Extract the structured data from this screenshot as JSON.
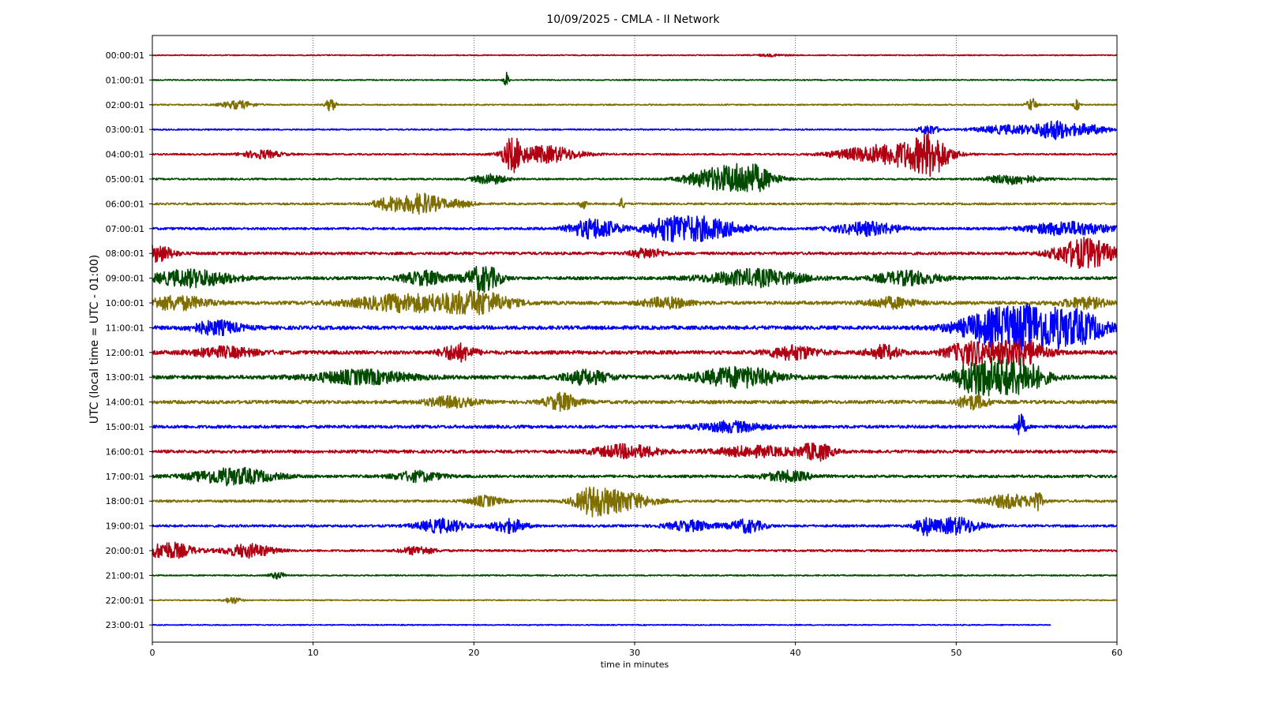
{
  "chart_data": {
    "type": "line",
    "title": "10/09/2025 - CMLA - II Network",
    "xlabel": "time in minutes",
    "ylabel": "UTC (local time = UTC - 01:00)",
    "xlim": [
      0,
      60
    ],
    "xticks": [
      0,
      10,
      20,
      30,
      40,
      50,
      60
    ],
    "grid": "vertical dotted",
    "colors": [
      "#b00012",
      "#004a00",
      "#7f6f00",
      "#0000ff"
    ],
    "rows": [
      {
        "label": "00:00:01",
        "noise": 0.15,
        "end": 60,
        "events": [
          [
            38.5,
            1.0,
            0.3
          ]
        ]
      },
      {
        "label": "01:00:01",
        "noise": 0.15,
        "end": 60,
        "events": [
          [
            22.0,
            0.15,
            2.5
          ]
        ]
      },
      {
        "label": "02:00:01",
        "noise": 0.18,
        "end": 60,
        "events": [
          [
            5.3,
            1.0,
            1.2
          ],
          [
            11.1,
            0.3,
            2.0
          ],
          [
            54.7,
            0.3,
            2.0
          ],
          [
            57.5,
            0.2,
            1.5
          ]
        ]
      },
      {
        "label": "03:00:01",
        "noise": 0.2,
        "end": 60,
        "events": [
          [
            48.3,
            0.6,
            1.5
          ],
          [
            53.3,
            2.0,
            1.3
          ],
          [
            56.0,
            1.0,
            2.5
          ],
          [
            58.0,
            1.5,
            1.5
          ]
        ]
      },
      {
        "label": "04:00:01",
        "noise": 0.25,
        "end": 60,
        "events": [
          [
            6.8,
            1.2,
            1.2
          ],
          [
            22.4,
            0.6,
            4.5
          ],
          [
            24.5,
            2.0,
            2.5
          ],
          [
            44.0,
            2.0,
            1.5
          ],
          [
            47.0,
            2.2,
            3.5
          ],
          [
            48.5,
            1.0,
            4.5
          ]
        ]
      },
      {
        "label": "05:00:01",
        "noise": 0.25,
        "end": 60,
        "events": [
          [
            21.0,
            1.0,
            1.5
          ],
          [
            35.0,
            1.8,
            3.0
          ],
          [
            37.2,
            1.5,
            4.0
          ],
          [
            53.5,
            1.5,
            1.5
          ]
        ]
      },
      {
        "label": "06:00:01",
        "noise": 0.28,
        "end": 60,
        "events": [
          [
            14.8,
            1.0,
            2.0
          ],
          [
            16.8,
            1.2,
            3.0
          ],
          [
            19.0,
            1.0,
            1.0
          ],
          [
            26.8,
            0.2,
            1.5
          ],
          [
            29.2,
            0.2,
            1.5
          ]
        ]
      },
      {
        "label": "07:00:01",
        "noise": 0.35,
        "end": 60,
        "events": [
          [
            27.5,
            1.5,
            3.0
          ],
          [
            32.0,
            1.2,
            2.0
          ],
          [
            34.0,
            2.5,
            3.5
          ],
          [
            44.5,
            2.0,
            2.0
          ],
          [
            57.0,
            2.5,
            2.0
          ]
        ]
      },
      {
        "label": "08:00:01",
        "noise": 0.4,
        "end": 60,
        "events": [
          [
            0.3,
            1.0,
            2.5
          ],
          [
            30.8,
            1.0,
            1.5
          ],
          [
            58.0,
            1.8,
            4.5
          ]
        ]
      },
      {
        "label": "09:00:01",
        "noise": 0.45,
        "end": 60,
        "events": [
          [
            2.5,
            2.5,
            2.5
          ],
          [
            17.0,
            1.5,
            2.0
          ],
          [
            20.6,
            1.0,
            4.0
          ],
          [
            37.5,
            3.0,
            2.5
          ],
          [
            47.0,
            2.0,
            2.0
          ]
        ]
      },
      {
        "label": "10:00:01",
        "noise": 0.5,
        "end": 60,
        "events": [
          [
            1.5,
            2.0,
            2.0
          ],
          [
            16.0,
            3.5,
            2.5
          ],
          [
            20.3,
            2.0,
            3.0
          ],
          [
            32.0,
            1.5,
            1.5
          ],
          [
            46.0,
            1.5,
            1.5
          ],
          [
            58.0,
            1.5,
            1.5
          ]
        ]
      },
      {
        "label": "11:00:01",
        "noise": 0.55,
        "end": 60,
        "events": [
          [
            4.0,
            1.5,
            2.0
          ],
          [
            52.5,
            2.5,
            4.5
          ],
          [
            55.5,
            2.5,
            5.5
          ],
          [
            58.0,
            1.5,
            2.5
          ]
        ]
      },
      {
        "label": "12:00:01",
        "noise": 0.55,
        "end": 60,
        "events": [
          [
            4.5,
            2.0,
            1.5
          ],
          [
            19.0,
            1.0,
            2.5
          ],
          [
            39.9,
            1.5,
            2.0
          ],
          [
            45.5,
            1.0,
            2.0
          ],
          [
            51.0,
            1.5,
            3.5
          ],
          [
            54.0,
            1.5,
            4.0
          ]
        ]
      },
      {
        "label": "13:00:01",
        "noise": 0.55,
        "end": 60,
        "events": [
          [
            13.0,
            3.0,
            2.0
          ],
          [
            27.0,
            1.5,
            2.0
          ],
          [
            36.5,
            2.5,
            3.0
          ],
          [
            51.5,
            1.5,
            5.5
          ],
          [
            54.0,
            1.5,
            5.0
          ]
        ]
      },
      {
        "label": "14:00:01",
        "noise": 0.5,
        "end": 60,
        "events": [
          [
            18.5,
            1.5,
            1.5
          ],
          [
            25.5,
            1.0,
            2.5
          ],
          [
            51.0,
            1.0,
            2.0
          ]
        ]
      },
      {
        "label": "15:00:01",
        "noise": 0.45,
        "end": 60,
        "events": [
          [
            36.0,
            2.0,
            1.5
          ],
          [
            54.0,
            0.3,
            3.5
          ]
        ]
      },
      {
        "label": "16:00:01",
        "noise": 0.45,
        "end": 60,
        "events": [
          [
            29.5,
            2.0,
            2.0
          ],
          [
            37.5,
            2.5,
            1.5
          ],
          [
            41.3,
            1.0,
            2.5
          ]
        ]
      },
      {
        "label": "17:00:01",
        "noise": 0.4,
        "end": 60,
        "events": [
          [
            5.0,
            2.5,
            2.5
          ],
          [
            16.5,
            1.5,
            1.5
          ],
          [
            39.5,
            1.5,
            1.5
          ]
        ]
      },
      {
        "label": "18:00:01",
        "noise": 0.35,
        "end": 60,
        "events": [
          [
            20.7,
            1.0,
            1.5
          ],
          [
            27.3,
            1.0,
            3.0
          ],
          [
            29.0,
            2.0,
            3.0
          ],
          [
            53.3,
            1.5,
            2.0
          ],
          [
            55.0,
            0.3,
            3.0
          ]
        ]
      },
      {
        "label": "19:00:01",
        "noise": 0.35,
        "end": 60,
        "events": [
          [
            18.0,
            1.5,
            2.0
          ],
          [
            22.2,
            1.0,
            2.0
          ],
          [
            33.5,
            1.5,
            1.5
          ],
          [
            37.0,
            1.0,
            2.0
          ],
          [
            48.0,
            0.5,
            2.5
          ],
          [
            50.0,
            1.5,
            2.5
          ]
        ]
      },
      {
        "label": "20:00:01",
        "noise": 0.3,
        "end": 60,
        "events": [
          [
            1.0,
            1.5,
            2.5
          ],
          [
            6.0,
            1.5,
            2.0
          ],
          [
            16.5,
            1.0,
            1.2
          ]
        ]
      },
      {
        "label": "21:00:01",
        "noise": 0.18,
        "end": 60,
        "events": [
          [
            7.8,
            0.5,
            1.0
          ]
        ]
      },
      {
        "label": "22:00:01",
        "noise": 0.15,
        "end": 60,
        "events": [
          [
            5.0,
            0.5,
            1.0
          ]
        ]
      },
      {
        "label": "23:00:01",
        "noise": 0.15,
        "end": 55.9,
        "events": []
      }
    ]
  }
}
